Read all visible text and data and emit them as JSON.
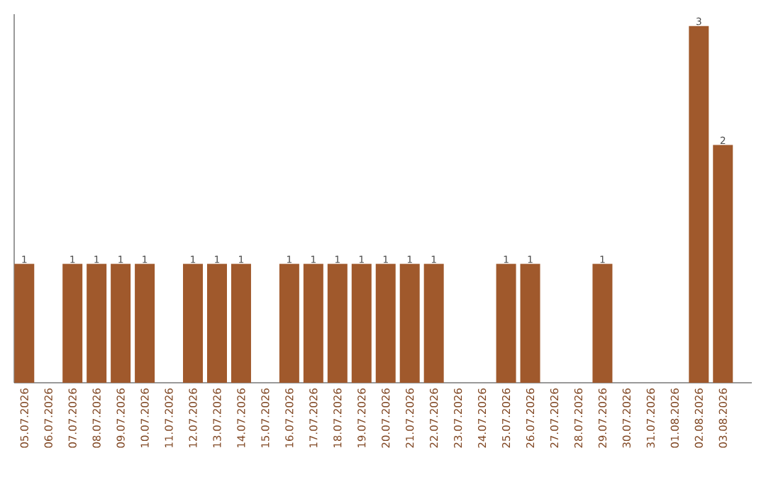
{
  "chart_data": {
    "type": "bar",
    "categories": [
      "05.07.2026",
      "06.07.2026",
      "07.07.2026",
      "08.07.2026",
      "09.07.2026",
      "10.07.2026",
      "11.07.2026",
      "12.07.2026",
      "13.07.2026",
      "14.07.2026",
      "15.07.2026",
      "16.07.2026",
      "17.07.2026",
      "18.07.2026",
      "19.07.2026",
      "20.07.2026",
      "21.07.2026",
      "22.07.2026",
      "23.07.2026",
      "24.07.2026",
      "25.07.2026",
      "26.07.2026",
      "27.07.2026",
      "28.07.2026",
      "29.07.2026",
      "30.07.2026",
      "31.07.2026",
      "01.08.2026",
      "02.08.2026",
      "03.08.2026"
    ],
    "values": [
      1,
      null,
      1,
      1,
      1,
      1,
      null,
      1,
      1,
      1,
      null,
      1,
      1,
      1,
      1,
      1,
      1,
      1,
      null,
      null,
      1,
      1,
      null,
      null,
      1,
      null,
      null,
      null,
      3,
      2
    ],
    "value_labels": [
      "1",
      null,
      "1",
      "1",
      "1",
      "1",
      null,
      "1",
      "1",
      "1",
      null,
      "1",
      "1",
      "1",
      "1",
      "1",
      "1",
      "1",
      null,
      null,
      "1",
      "1",
      null,
      null,
      "1",
      null,
      null,
      null,
      "3",
      "2"
    ],
    "color": "#a0592c",
    "ylim": [
      0,
      3.1
    ]
  }
}
